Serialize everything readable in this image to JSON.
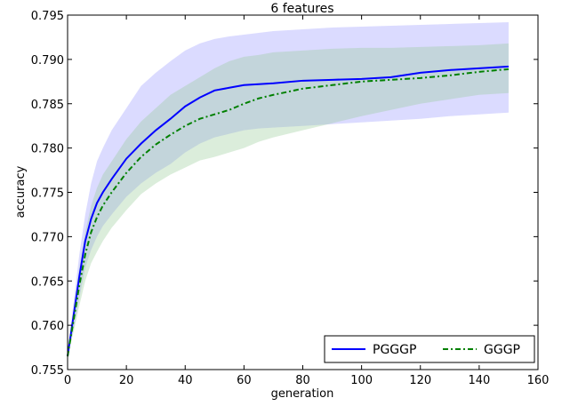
{
  "chart_data": {
    "type": "line",
    "title": "6 features",
    "xlabel": "generation",
    "ylabel": "accuracy",
    "xlim": [
      0,
      160
    ],
    "ylim": [
      0.755,
      0.795
    ],
    "xticks": [
      "0",
      "20",
      "40",
      "60",
      "80",
      "100",
      "120",
      "140",
      "160"
    ],
    "yticks": [
      "0.755",
      "0.760",
      "0.765",
      "0.770",
      "0.775",
      "0.780",
      "0.785",
      "0.790",
      "0.795"
    ],
    "grid": false,
    "legend_position": "lower-right",
    "series": [
      {
        "name": "PGGGP",
        "color": "#0000ff",
        "line_style": "solid",
        "band_color": "#9999ff",
        "x": [
          0,
          2,
          4,
          6,
          8,
          10,
          12,
          15,
          20,
          25,
          30,
          35,
          40,
          45,
          50,
          55,
          60,
          65,
          70,
          80,
          90,
          100,
          110,
          120,
          130,
          140,
          150
        ],
        "mean": [
          0.7565,
          0.761,
          0.7655,
          0.7695,
          0.772,
          0.7738,
          0.775,
          0.7765,
          0.7788,
          0.7805,
          0.782,
          0.7833,
          0.7847,
          0.7857,
          0.7865,
          0.7868,
          0.7871,
          0.7872,
          0.7873,
          0.7876,
          0.7877,
          0.7878,
          0.788,
          0.7885,
          0.7888,
          0.789,
          0.7892
        ],
        "upper": [
          0.7565,
          0.7625,
          0.768,
          0.7725,
          0.776,
          0.7785,
          0.78,
          0.782,
          0.7845,
          0.787,
          0.7885,
          0.7898,
          0.791,
          0.7918,
          0.7923,
          0.7926,
          0.7928,
          0.793,
          0.7932,
          0.7934,
          0.7936,
          0.7937,
          0.7938,
          0.7939,
          0.794,
          0.7941,
          0.7942
        ],
        "lower": [
          0.7565,
          0.7595,
          0.763,
          0.7665,
          0.7685,
          0.77,
          0.7712,
          0.7725,
          0.7745,
          0.776,
          0.7772,
          0.7782,
          0.7795,
          0.7805,
          0.7812,
          0.7816,
          0.782,
          0.7822,
          0.7823,
          0.7825,
          0.7827,
          0.7829,
          0.7831,
          0.7833,
          0.7836,
          0.7838,
          0.784
        ]
      },
      {
        "name": "GGGP",
        "color": "#008000",
        "line_style": "dashdot",
        "band_color": "#99cc99",
        "x": [
          0,
          2,
          4,
          6,
          8,
          10,
          12,
          15,
          20,
          25,
          30,
          35,
          40,
          45,
          50,
          55,
          60,
          65,
          70,
          80,
          90,
          100,
          110,
          120,
          130,
          140,
          150
        ],
        "mean": [
          0.7565,
          0.7605,
          0.7645,
          0.768,
          0.7705,
          0.7722,
          0.7735,
          0.775,
          0.7772,
          0.779,
          0.7804,
          0.7815,
          0.7825,
          0.7833,
          0.7838,
          0.7843,
          0.785,
          0.7856,
          0.786,
          0.7867,
          0.7871,
          0.7875,
          0.7877,
          0.7879,
          0.7882,
          0.7886,
          0.7889
        ],
        "upper": [
          0.7565,
          0.7618,
          0.7665,
          0.7705,
          0.7735,
          0.7755,
          0.777,
          0.7785,
          0.781,
          0.783,
          0.7845,
          0.786,
          0.787,
          0.788,
          0.789,
          0.7898,
          0.7903,
          0.7905,
          0.7908,
          0.791,
          0.7912,
          0.7913,
          0.7913,
          0.7914,
          0.7915,
          0.7916,
          0.7918
        ],
        "lower": [
          0.7565,
          0.7592,
          0.7622,
          0.765,
          0.767,
          0.7683,
          0.7695,
          0.771,
          0.773,
          0.7748,
          0.776,
          0.777,
          0.7778,
          0.7786,
          0.779,
          0.7795,
          0.78,
          0.7807,
          0.7812,
          0.782,
          0.7828,
          0.7836,
          0.7843,
          0.785,
          0.7855,
          0.786,
          0.7862
        ]
      }
    ]
  }
}
